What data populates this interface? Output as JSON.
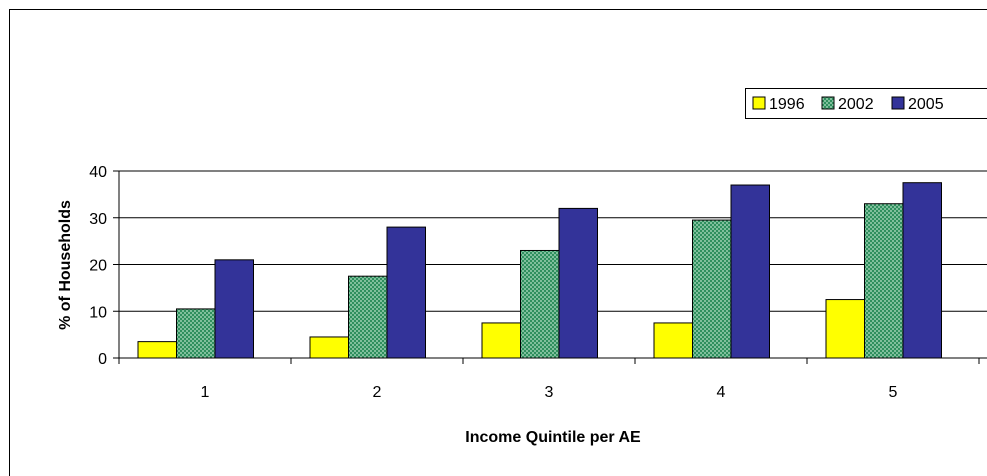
{
  "chart_data": {
    "type": "bar",
    "title": "",
    "xlabel": "Income Quintile per AE",
    "ylabel": "% of Households",
    "categories": [
      "1",
      "2",
      "3",
      "4",
      "5"
    ],
    "ylim": [
      0,
      40
    ],
    "yticks": [
      "0",
      "10",
      "20",
      "30",
      "40"
    ],
    "grid": true,
    "legend_position": "top-right",
    "series": [
      {
        "name": "1996",
        "color": "#FFFF00",
        "pattern": "solid",
        "values": [
          3.5,
          4.5,
          7.5,
          7.5,
          12.5
        ]
      },
      {
        "name": "2002",
        "color": "#339966",
        "pattern": "dotted",
        "values": [
          10.5,
          17.5,
          23.0,
          29.5,
          33.0
        ]
      },
      {
        "name": "2005",
        "color": "#333399",
        "pattern": "solid",
        "values": [
          21.0,
          28.0,
          32.0,
          37.0,
          37.5
        ]
      }
    ]
  }
}
